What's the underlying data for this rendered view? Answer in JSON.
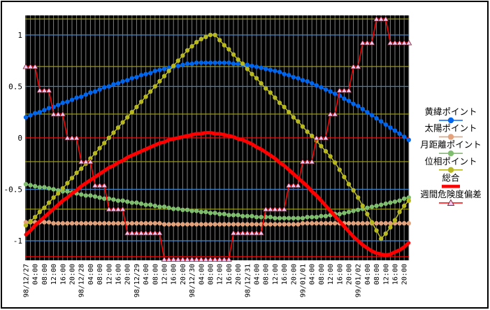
{
  "chart": {
    "plot_bg_color": "#000000",
    "frame_color": "#000000",
    "vertical_gridline_color": "#808080",
    "reference_lines": {
      "blue_color": "#4080c0",
      "olive_color": "#9a9a10",
      "red_color": "#ff0000",
      "blue_values": [
        1.0,
        0.5,
        -0.5,
        -1.0
      ],
      "olive_values": [
        1.155,
        0.693,
        0.231,
        -0.231,
        -0.693
      ],
      "red_values": [
        0,
        -1.155
      ]
    },
    "y_axis": {
      "labels": [
        "1",
        "0.5",
        "0",
        "-0.5",
        "-1"
      ],
      "values": [
        1,
        0.5,
        0,
        -0.5,
        -1
      ]
    },
    "legend": [
      {
        "key": "latitude-points",
        "label": "黄緯ポイント",
        "color": "#0066ee",
        "marker": "circle",
        "marker_fill": "#0066ee"
      },
      {
        "key": "sun-points",
        "label": "太陽ポイント",
        "color": "#e2a27c",
        "marker": "circle",
        "marker_fill": "#e2a27c"
      },
      {
        "key": "moon-distance-points",
        "label": "月距離ポイント",
        "color": "#7fbe6e",
        "marker": "circle",
        "marker_fill": "#7fbe6e"
      },
      {
        "key": "phase-points",
        "label": "位相ポイント",
        "color": "#b8b821",
        "marker": "circle",
        "marker_fill": "#b8b821"
      },
      {
        "key": "total",
        "label": "総合",
        "color": "#ff0000",
        "marker": "none",
        "marker_fill": "#ff0000"
      },
      {
        "key": "weekly-risk-deviation",
        "label": "週間危険度偏差",
        "color": "#ff0000",
        "marker": "triangle",
        "marker_fill": "#f6c8f4"
      }
    ]
  },
  "chart_data": {
    "type": "line",
    "title": "",
    "xlabel": "",
    "ylabel": "",
    "ylim": [
      -1.19,
      1.19
    ],
    "grid": "on",
    "legend_position": "right",
    "points_per_x_label": 2,
    "x_labels": [
      "98/12/27",
      "04:00",
      "08:00",
      "12:00",
      "16:00",
      "20:00",
      "98/12/28",
      "04:00",
      "08:00",
      "12:00",
      "16:00",
      "20:00",
      "98/12/29",
      "04:00",
      "08:00",
      "12:00",
      "16:00",
      "20:00",
      "98/12/30",
      "04:00",
      "08:00",
      "12:00",
      "16:00",
      "20:00",
      "98/12/31",
      "04:00",
      "08:00",
      "12:00",
      "16:00",
      "20:00",
      "99/01/01",
      "04:00",
      "08:00",
      "12:00",
      "16:00",
      "20:00",
      "99/01/02",
      "04:00",
      "08:00",
      "12:00",
      "16:00",
      "20:00"
    ],
    "series": [
      {
        "name": "黄緯ポイント",
        "color": "#0066ee",
        "marker": "circle",
        "line_width": 1.6,
        "values": [
          0.2,
          0.22,
          0.24,
          0.25,
          0.27,
          0.29,
          0.3,
          0.32,
          0.34,
          0.35,
          0.37,
          0.39,
          0.4,
          0.42,
          0.44,
          0.45,
          0.47,
          0.49,
          0.5,
          0.52,
          0.53,
          0.55,
          0.56,
          0.58,
          0.59,
          0.61,
          0.62,
          0.63,
          0.65,
          0.66,
          0.67,
          0.68,
          0.69,
          0.7,
          0.71,
          0.72,
          0.72,
          0.73,
          0.73,
          0.73,
          0.73,
          0.73,
          0.73,
          0.73,
          0.73,
          0.72,
          0.72,
          0.71,
          0.71,
          0.7,
          0.69,
          0.68,
          0.67,
          0.66,
          0.65,
          0.64,
          0.62,
          0.61,
          0.59,
          0.58,
          0.56,
          0.55,
          0.53,
          0.51,
          0.49,
          0.47,
          0.45,
          0.43,
          0.41,
          0.38,
          0.36,
          0.33,
          0.31,
          0.28,
          0.25,
          0.22,
          0.19,
          0.16,
          0.13,
          0.1,
          0.07,
          0.04,
          0.01,
          -0.02
        ]
      },
      {
        "name": "太陽ポイント",
        "color": "#e2a27c",
        "marker": "circle",
        "line_width": 1.6,
        "values": [
          -0.82,
          -0.82,
          -0.82,
          -0.82,
          -0.82,
          -0.82,
          -0.83,
          -0.83,
          -0.83,
          -0.83,
          -0.83,
          -0.83,
          -0.83,
          -0.83,
          -0.83,
          -0.83,
          -0.83,
          -0.83,
          -0.83,
          -0.83,
          -0.83,
          -0.83,
          -0.83,
          -0.83,
          -0.83,
          -0.83,
          -0.83,
          -0.83,
          -0.83,
          -0.83,
          -0.84,
          -0.84,
          -0.84,
          -0.84,
          -0.84,
          -0.84,
          -0.84,
          -0.84,
          -0.84,
          -0.84,
          -0.84,
          -0.84,
          -0.84,
          -0.84,
          -0.84,
          -0.84,
          -0.84,
          -0.84,
          -0.84,
          -0.84,
          -0.84,
          -0.84,
          -0.84,
          -0.84,
          -0.84,
          -0.84,
          -0.84,
          -0.84,
          -0.84,
          -0.84,
          -0.83,
          -0.83,
          -0.83,
          -0.83,
          -0.83,
          -0.83,
          -0.83,
          -0.83,
          -0.83,
          -0.83,
          -0.83,
          -0.83,
          -0.83,
          -0.83,
          -0.83,
          -0.83,
          -0.83,
          -0.83,
          -0.83,
          -0.83,
          -0.83,
          -0.83,
          -0.83,
          -0.83
        ]
      },
      {
        "name": "月距離ポイント",
        "color": "#7fbe6e",
        "marker": "circle",
        "line_width": 1.6,
        "values": [
          -0.45,
          -0.46,
          -0.47,
          -0.48,
          -0.48,
          -0.49,
          -0.5,
          -0.51,
          -0.52,
          -0.52,
          -0.53,
          -0.54,
          -0.55,
          -0.56,
          -0.56,
          -0.57,
          -0.58,
          -0.59,
          -0.59,
          -0.6,
          -0.61,
          -0.61,
          -0.62,
          -0.63,
          -0.63,
          -0.64,
          -0.65,
          -0.65,
          -0.66,
          -0.67,
          -0.67,
          -0.68,
          -0.69,
          -0.69,
          -0.7,
          -0.7,
          -0.71,
          -0.71,
          -0.72,
          -0.72,
          -0.73,
          -0.73,
          -0.74,
          -0.74,
          -0.75,
          -0.75,
          -0.75,
          -0.76,
          -0.76,
          -0.76,
          -0.77,
          -0.77,
          -0.77,
          -0.77,
          -0.78,
          -0.78,
          -0.78,
          -0.78,
          -0.78,
          -0.78,
          -0.78,
          -0.77,
          -0.77,
          -0.77,
          -0.76,
          -0.76,
          -0.75,
          -0.74,
          -0.74,
          -0.73,
          -0.72,
          -0.71,
          -0.7,
          -0.69,
          -0.68,
          -0.67,
          -0.66,
          -0.65,
          -0.64,
          -0.63,
          -0.62,
          -0.61,
          -0.59,
          -0.58
        ]
      },
      {
        "name": "位相ポイント",
        "color": "#b8b821",
        "marker": "circle",
        "line_width": 1.6,
        "values": [
          -0.85,
          -0.81,
          -0.77,
          -0.72,
          -0.68,
          -0.63,
          -0.58,
          -0.54,
          -0.49,
          -0.44,
          -0.39,
          -0.34,
          -0.3,
          -0.25,
          -0.2,
          -0.15,
          -0.1,
          -0.05,
          0.0,
          0.05,
          0.1,
          0.15,
          0.2,
          0.25,
          0.3,
          0.35,
          0.4,
          0.45,
          0.5,
          0.55,
          0.6,
          0.65,
          0.7,
          0.75,
          0.8,
          0.85,
          0.89,
          0.93,
          0.96,
          0.98,
          1.0,
          1.0,
          0.95,
          0.9,
          0.86,
          0.81,
          0.76,
          0.72,
          0.67,
          0.62,
          0.58,
          0.53,
          0.48,
          0.44,
          0.39,
          0.34,
          0.3,
          0.25,
          0.2,
          0.16,
          0.11,
          0.06,
          0.02,
          -0.03,
          -0.08,
          -0.13,
          -0.18,
          -0.24,
          -0.31,
          -0.38,
          -0.45,
          -0.51,
          -0.58,
          -0.66,
          -0.74,
          -0.82,
          -0.9,
          -0.98,
          -0.93,
          -0.87,
          -0.8,
          -0.72,
          -0.66,
          -0.61
        ]
      },
      {
        "name": "総合",
        "color": "#ff0000",
        "marker": "none",
        "line_width": 5,
        "values": [
          -0.94,
          -0.9,
          -0.85,
          -0.81,
          -0.77,
          -0.73,
          -0.69,
          -0.65,
          -0.61,
          -0.58,
          -0.54,
          -0.51,
          -0.47,
          -0.44,
          -0.41,
          -0.38,
          -0.35,
          -0.32,
          -0.29,
          -0.27,
          -0.24,
          -0.22,
          -0.19,
          -0.17,
          -0.15,
          -0.13,
          -0.11,
          -0.09,
          -0.07,
          -0.05,
          -0.04,
          -0.02,
          -0.01,
          0.0,
          0.01,
          0.02,
          0.03,
          0.04,
          0.04,
          0.05,
          0.05,
          0.04,
          0.04,
          0.03,
          0.02,
          0.01,
          -0.01,
          -0.02,
          -0.04,
          -0.06,
          -0.09,
          -0.11,
          -0.14,
          -0.17,
          -0.2,
          -0.24,
          -0.27,
          -0.31,
          -0.35,
          -0.39,
          -0.43,
          -0.47,
          -0.52,
          -0.56,
          -0.61,
          -0.66,
          -0.71,
          -0.76,
          -0.81,
          -0.86,
          -0.91,
          -0.96,
          -1.0,
          -1.04,
          -1.07,
          -1.1,
          -1.12,
          -1.13,
          -1.14,
          -1.13,
          -1.11,
          -1.09,
          -1.06,
          -1.02
        ]
      },
      {
        "name": "週間危険度偏差",
        "color": "#ff0000",
        "marker": "triangle",
        "line_width": 1.6,
        "step_unit": 0.231,
        "values": [
          0.693,
          0.693,
          0.693,
          0.462,
          0.462,
          0.462,
          0.231,
          0.231,
          0.231,
          0,
          0,
          0,
          -0.231,
          -0.231,
          -0.231,
          -0.462,
          -0.462,
          -0.462,
          -0.693,
          -0.693,
          -0.693,
          -0.693,
          -0.924,
          -0.924,
          -0.924,
          -0.924,
          -0.924,
          -0.924,
          -0.924,
          -0.924,
          -1.18,
          -1.18,
          -1.18,
          -1.18,
          -1.18,
          -1.18,
          -1.18,
          -1.18,
          -1.18,
          -1.18,
          -1.18,
          -1.18,
          -1.18,
          -1.18,
          -1.18,
          -0.924,
          -0.924,
          -0.924,
          -0.924,
          -0.924,
          -0.924,
          -0.924,
          -0.693,
          -0.693,
          -0.693,
          -0.693,
          -0.693,
          -0.462,
          -0.462,
          -0.462,
          -0.231,
          -0.231,
          -0.231,
          0,
          0,
          0,
          0.231,
          0.231,
          0.462,
          0.462,
          0.462,
          0.693,
          0.693,
          0.924,
          0.924,
          0.924,
          1.155,
          1.155,
          1.155,
          0.924,
          0.924,
          0.924,
          0.924,
          0.924
        ]
      }
    ]
  }
}
